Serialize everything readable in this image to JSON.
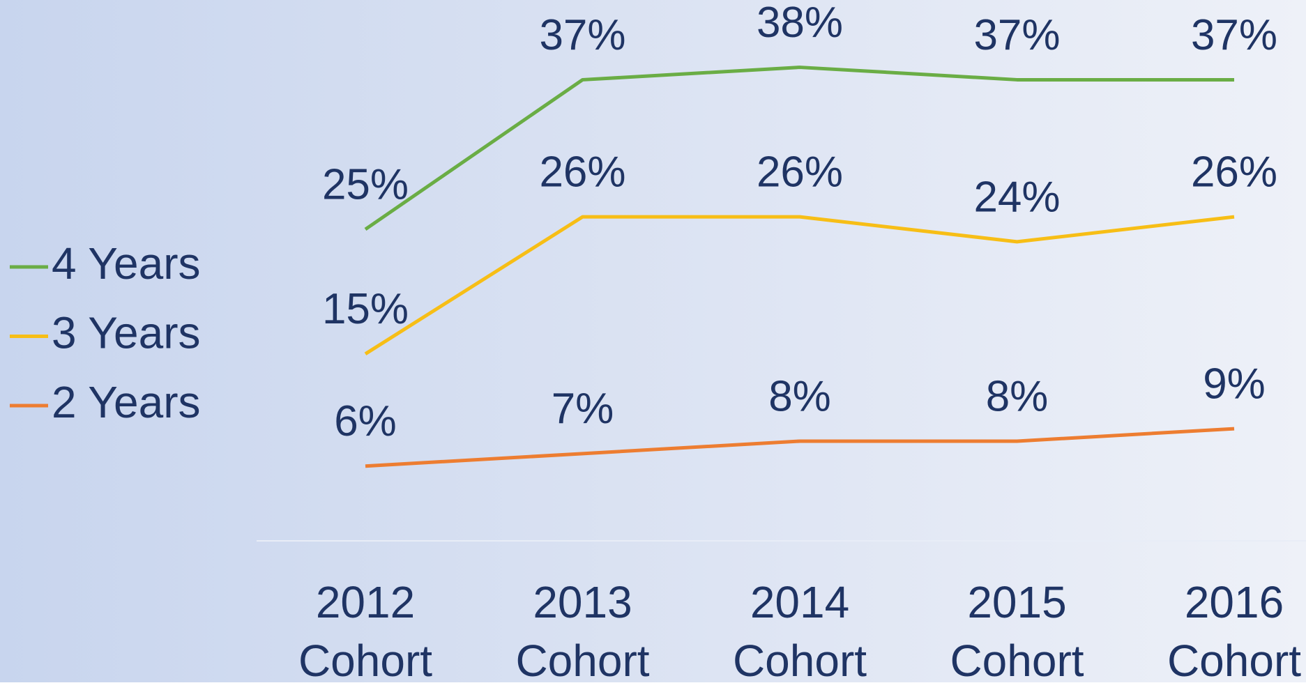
{
  "chart_data": {
    "type": "line",
    "categories": [
      "2012 Cohort",
      "2013 Cohort",
      "2014 Cohort",
      "2015 Cohort",
      "2016 Cohort"
    ],
    "series": [
      {
        "name": "4 Years",
        "color": "#6aad45",
        "values": [
          25,
          37,
          38,
          37,
          37
        ],
        "value_labels": [
          "25%",
          "37%",
          "38%",
          "37%",
          "37%"
        ]
      },
      {
        "name": "3 Years",
        "color": "#f7be16",
        "values": [
          15,
          26,
          26,
          24,
          26
        ],
        "value_labels": [
          "15%",
          "26%",
          "26%",
          "24%",
          "26%"
        ]
      },
      {
        "name": "2 Years",
        "color": "#ed7d31",
        "values": [
          6,
          7,
          8,
          8,
          9
        ],
        "value_labels": [
          "6%",
          "7%",
          "8%",
          "8%",
          "9%"
        ]
      }
    ],
    "legend": "left"
  }
}
